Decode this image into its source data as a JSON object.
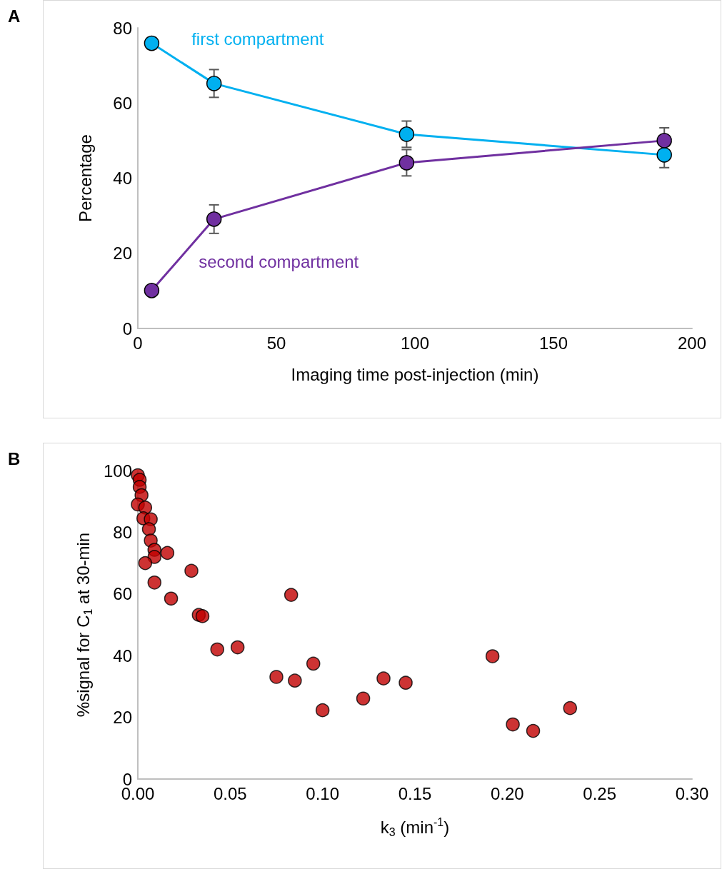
{
  "chart_data": [
    {
      "type": "line",
      "title": "A",
      "xlabel": "Imaging time post-injection (min)",
      "ylabel": "Percentage",
      "x": [
        5,
        27.5,
        97,
        190
      ],
      "series": [
        {
          "name": "first compartment",
          "color": "#00b0f0",
          "values": [
            75.9,
            65.2,
            51.7,
            46.2
          ],
          "errors": [
            1.5,
            3.7,
            3.5,
            3.4
          ]
        },
        {
          "name": "second compartment",
          "color": "#7030a0",
          "values": [
            10.1,
            29.1,
            44.1,
            50
          ],
          "errors": [
            null,
            3.8,
            3.5,
            3.4
          ]
        }
      ],
      "xlim": [
        0,
        200
      ],
      "xticks": [
        0,
        50,
        100,
        150,
        200
      ],
      "ylim": [
        0,
        80
      ],
      "yticks": [
        0,
        20,
        40,
        60,
        80
      ],
      "grid": false,
      "legend": false,
      "marker": "circle",
      "line_style": "solid"
    },
    {
      "type": "scatter",
      "title": "B",
      "xlabel": "k$_{3}$ (min$^{-1}$)",
      "ylabel": "%signal for C$_{1}$ at 30-min",
      "x": [
        0,
        0.001,
        0.001,
        0.002,
        0.0,
        0.004,
        0.003,
        0.007,
        0.006,
        0.007,
        0.009,
        0.009,
        0.016,
        0.004,
        0.029,
        0.009,
        0.018,
        0.033,
        0.035,
        0.043,
        0.054,
        0.075,
        0.085,
        0.083,
        0.095,
        0.1,
        0.122,
        0.133,
        0.145,
        0.192,
        0.203,
        0.214,
        0.234
      ],
      "series": [
        {
          "color": "#c00000",
          "values": [
            98.5,
            97,
            94.7,
            92,
            89,
            88,
            84.5,
            84.2,
            81,
            77.3,
            74.3,
            72,
            73.3,
            70,
            67.5,
            63.7,
            58.5,
            53.2,
            52.8,
            42,
            42.7,
            33.1,
            31.9,
            59.7,
            37.4,
            22.3,
            26.1,
            32.6,
            31.2,
            39.8,
            17.7,
            15.6,
            23
          ]
        }
      ],
      "xlim": [
        0,
        0.3
      ],
      "xticks": [
        {
          "value": 0,
          "label": "0.00"
        },
        {
          "value": 0.05,
          "label": "0.05"
        },
        {
          "value": 0.1,
          "label": "0.10"
        },
        {
          "value": 0.15,
          "label": "0.15"
        },
        {
          "value": 0.2,
          "label": "0.20"
        },
        {
          "value": 0.25,
          "label": "0.25"
        },
        {
          "value": 0.3,
          "label": "0.30"
        }
      ],
      "ylim": [
        0,
        100
      ],
      "yticks": [
        0,
        20,
        40,
        60,
        80,
        100
      ],
      "grid": false,
      "legend": false,
      "marker": "circle"
    }
  ]
}
